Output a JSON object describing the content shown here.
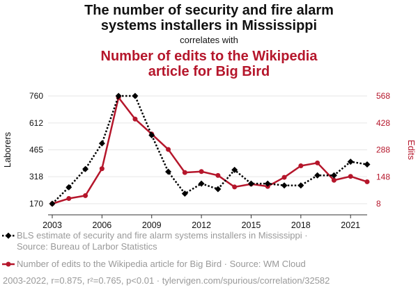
{
  "header": {
    "title_line1": "The number of security and fire alarm",
    "title_line2": "systems installers in Mississippi",
    "connector": "correlates with",
    "subtitle_line1": "Number of edits to the Wikipedia",
    "subtitle_line2": "article for Big Bird"
  },
  "colors": {
    "series1": "#000000",
    "series2": "#b5162b",
    "grid": "#e6e6e6",
    "legend_text": "#999999"
  },
  "legend": {
    "series1_line1": "BLS estimate of security and fire alarm systems installers in Mississippi ·",
    "series1_line2": "Source: Bureau of Larbor Statistics",
    "series2": "Number of edits to the Wikipedia article for Big Bird · Source: WM Cloud"
  },
  "footer": {
    "text": "2003-2022, r=0.875, r²=0.765, p<0.01 · tylervigen.com/spurious/correlation/32582"
  },
  "chart_data": {
    "type": "line",
    "xlim": [
      2003,
      2022
    ],
    "x_ticks": [
      2003,
      2006,
      2009,
      2012,
      2015,
      2018,
      2021
    ],
    "x": [
      2003,
      2004,
      2005,
      2006,
      2007,
      2008,
      2009,
      2010,
      2011,
      2012,
      2013,
      2014,
      2015,
      2016,
      2017,
      2018,
      2019,
      2020,
      2021,
      2022
    ],
    "y_left": {
      "label": "Laborers",
      "lim": [
        170,
        760
      ],
      "ticks": [
        170,
        318,
        465,
        612,
        760
      ]
    },
    "y_right": {
      "label": "Edits",
      "lim": [
        8,
        568
      ],
      "ticks": [
        8,
        148,
        288,
        428,
        568
      ]
    },
    "series": [
      {
        "name": "BLS estimate of security and fire alarm systems installers in Mississippi",
        "axis": "left",
        "style": "dotted",
        "marker": "diamond",
        "values": [
          170,
          260,
          360,
          500,
          760,
          760,
          545,
          345,
          225,
          280,
          250,
          355,
          280,
          280,
          270,
          270,
          325,
          325,
          400,
          385
        ]
      },
      {
        "name": "Number of edits to the Wikipedia article for Big Bird",
        "axis": "right",
        "style": "solid",
        "marker": "circle",
        "values": [
          8,
          35,
          50,
          190,
          560,
          448,
          370,
          290,
          170,
          175,
          155,
          95,
          110,
          98,
          145,
          205,
          220,
          130,
          150,
          122
        ]
      }
    ]
  }
}
